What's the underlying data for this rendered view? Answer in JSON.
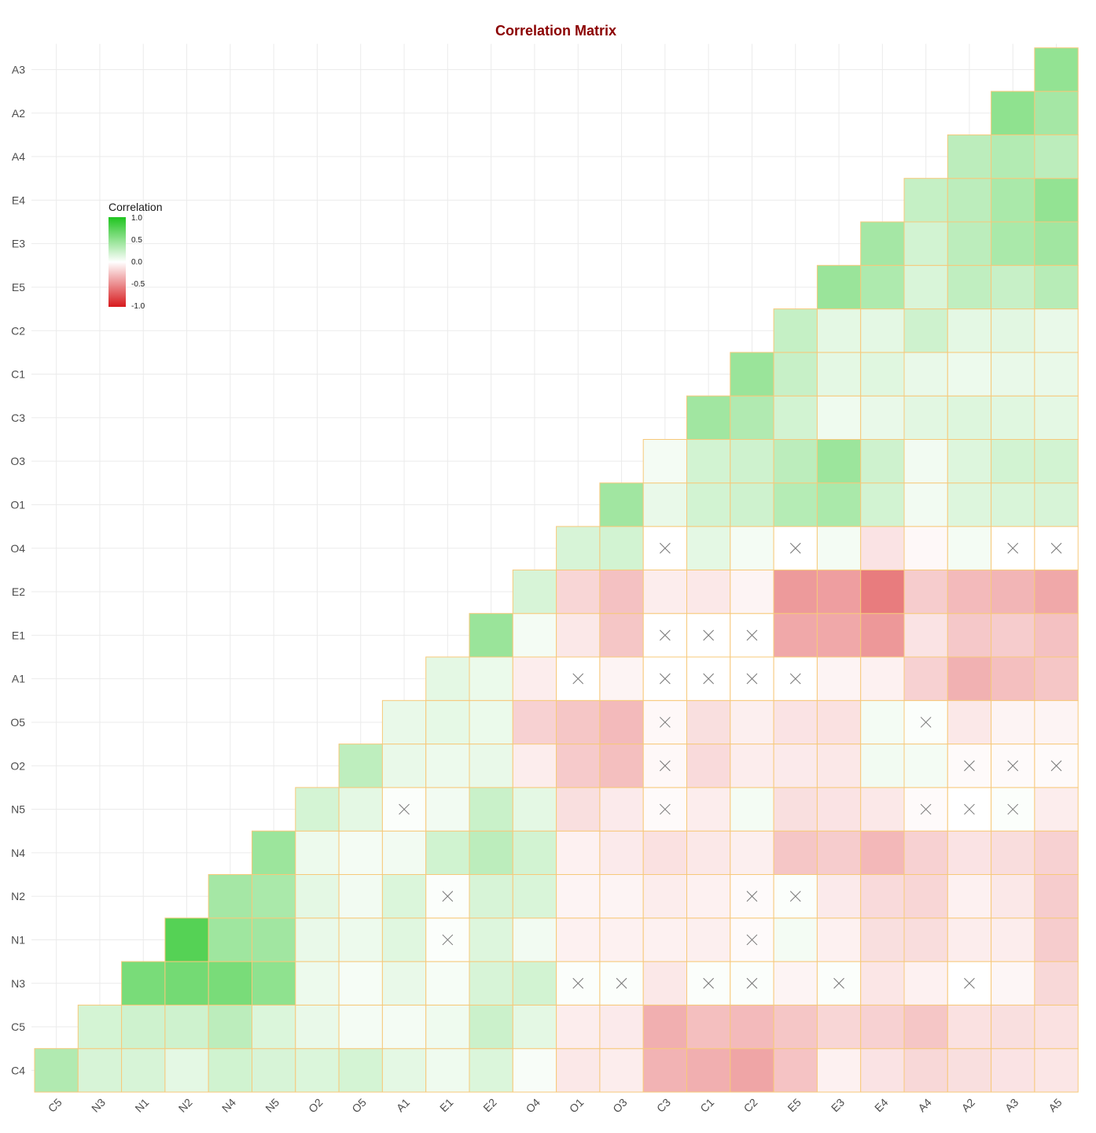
{
  "chart_data": {
    "type": "heatmap",
    "title": "Correlation Matrix",
    "xlabel": "",
    "ylabel": "",
    "x_labels": [
      "C5",
      "N3",
      "N1",
      "N2",
      "N4",
      "N5",
      "O2",
      "O5",
      "A1",
      "E1",
      "E2",
      "O4",
      "O1",
      "O3",
      "C3",
      "C1",
      "C2",
      "E5",
      "E3",
      "E4",
      "A4",
      "A2",
      "A3",
      "A5"
    ],
    "y_labels": [
      "C4",
      "C5",
      "N3",
      "N1",
      "N2",
      "N4",
      "N5",
      "O2",
      "O5",
      "A1",
      "E1",
      "E2",
      "O4",
      "O1",
      "O3",
      "C3",
      "C1",
      "C2",
      "E5",
      "E3",
      "E4",
      "A4",
      "A2",
      "A3"
    ],
    "values": [
      [
        0.35,
        0.18,
        0.18,
        0.12,
        0.21,
        0.18,
        0.16,
        0.19,
        0.12,
        0.07,
        0.16,
        0.03,
        -0.1,
        -0.08,
        -0.33,
        -0.35,
        -0.39,
        -0.26,
        -0.06,
        -0.12,
        -0.17,
        -0.14,
        -0.12,
        -0.11
      ],
      [
        null,
        0.19,
        0.22,
        0.22,
        0.3,
        0.16,
        0.1,
        0.05,
        0.05,
        0.07,
        0.23,
        0.12,
        -0.08,
        -0.09,
        -0.35,
        -0.28,
        -0.3,
        -0.25,
        -0.18,
        -0.2,
        -0.25,
        -0.13,
        -0.14,
        -0.13
      ],
      [
        null,
        null,
        0.6,
        0.62,
        0.6,
        0.5,
        0.08,
        0.04,
        0.1,
        0.04,
        0.18,
        0.2,
        0.02,
        0.02,
        -0.1,
        0.02,
        0.02,
        -0.05,
        0.02,
        -0.11,
        -0.06,
        0.0,
        -0.04,
        -0.17
      ],
      [
        null,
        null,
        null,
        0.76,
        0.43,
        0.42,
        0.1,
        0.08,
        0.14,
        0.02,
        0.15,
        0.06,
        -0.06,
        -0.06,
        -0.06,
        -0.07,
        -0.02,
        0.05,
        -0.06,
        -0.14,
        -0.15,
        -0.08,
        -0.08,
        -0.22
      ],
      [
        null,
        null,
        null,
        null,
        0.4,
        0.38,
        0.12,
        0.06,
        0.16,
        0.02,
        0.18,
        0.17,
        -0.05,
        -0.05,
        -0.08,
        -0.06,
        -0.02,
        0.02,
        -0.09,
        -0.16,
        -0.18,
        -0.06,
        -0.1,
        -0.22
      ],
      [
        null,
        null,
        null,
        null,
        null,
        0.44,
        0.08,
        0.05,
        0.06,
        0.21,
        0.3,
        0.2,
        -0.06,
        -0.09,
        -0.13,
        -0.1,
        -0.07,
        -0.25,
        -0.22,
        -0.31,
        -0.2,
        -0.12,
        -0.15,
        -0.2
      ],
      [
        null,
        null,
        null,
        null,
        null,
        null,
        0.19,
        0.12,
        0.02,
        0.06,
        0.24,
        0.12,
        -0.14,
        -0.09,
        -0.02,
        -0.08,
        0.05,
        -0.14,
        -0.12,
        -0.1,
        -0.02,
        0.0,
        0.02,
        -0.08
      ],
      [
        null,
        null,
        null,
        null,
        null,
        null,
        null,
        0.29,
        0.1,
        0.08,
        0.1,
        -0.08,
        -0.23,
        -0.28,
        -0.03,
        -0.16,
        -0.08,
        -0.09,
        -0.1,
        0.06,
        0.05,
        -0.02,
        -0.02,
        -0.02
      ],
      [
        null,
        null,
        null,
        null,
        null,
        null,
        null,
        null,
        0.1,
        0.11,
        0.09,
        -0.2,
        -0.25,
        -0.3,
        -0.03,
        -0.14,
        -0.07,
        -0.12,
        -0.13,
        0.05,
        0.02,
        -0.1,
        -0.05,
        -0.05
      ],
      [
        null,
        null,
        null,
        null,
        null,
        null,
        null,
        null,
        null,
        0.12,
        0.09,
        -0.08,
        0.0,
        -0.05,
        0.0,
        0.0,
        0.0,
        0.0,
        -0.05,
        -0.06,
        -0.2,
        -0.34,
        -0.28,
        -0.25
      ],
      [
        null,
        null,
        null,
        null,
        null,
        null,
        null,
        null,
        null,
        null,
        0.45,
        0.05,
        -0.1,
        -0.25,
        0.0,
        0.0,
        0.0,
        -0.38,
        -0.38,
        -0.45,
        -0.12,
        -0.24,
        -0.22,
        -0.27
      ],
      [
        null,
        null,
        null,
        null,
        null,
        null,
        null,
        null,
        null,
        null,
        null,
        0.18,
        -0.18,
        -0.27,
        -0.08,
        -0.1,
        -0.05,
        -0.44,
        -0.42,
        -0.57,
        -0.22,
        -0.3,
        -0.32,
        -0.38
      ],
      [
        null,
        null,
        null,
        null,
        null,
        null,
        null,
        null,
        null,
        null,
        null,
        null,
        0.18,
        0.2,
        0.0,
        0.12,
        0.05,
        0.0,
        0.05,
        -0.12,
        -0.03,
        0.05,
        0.0,
        0.0
      ],
      [
        null,
        null,
        null,
        null,
        null,
        null,
        null,
        null,
        null,
        null,
        null,
        null,
        null,
        0.42,
        0.1,
        0.2,
        0.22,
        0.33,
        0.38,
        0.2,
        0.06,
        0.15,
        0.17,
        0.18
      ],
      [
        null,
        null,
        null,
        null,
        null,
        null,
        null,
        null,
        null,
        null,
        null,
        null,
        null,
        null,
        0.05,
        0.2,
        0.22,
        0.3,
        0.44,
        0.22,
        0.06,
        0.15,
        0.2,
        0.2
      ],
      [
        null,
        null,
        null,
        null,
        null,
        null,
        null,
        null,
        null,
        null,
        null,
        null,
        null,
        null,
        null,
        0.42,
        0.35,
        0.2,
        0.07,
        0.1,
        0.13,
        0.15,
        0.14,
        0.12
      ],
      [
        null,
        null,
        null,
        null,
        null,
        null,
        null,
        null,
        null,
        null,
        null,
        null,
        null,
        null,
        null,
        null,
        0.45,
        0.25,
        0.12,
        0.14,
        0.1,
        0.08,
        0.1,
        0.1
      ],
      [
        null,
        null,
        null,
        null,
        null,
        null,
        null,
        null,
        null,
        null,
        null,
        null,
        null,
        null,
        null,
        null,
        null,
        0.26,
        0.12,
        0.12,
        0.22,
        0.12,
        0.13,
        0.1
      ],
      [
        null,
        null,
        null,
        null,
        null,
        null,
        null,
        null,
        null,
        null,
        null,
        null,
        null,
        null,
        null,
        null,
        null,
        null,
        0.45,
        0.36,
        0.17,
        0.28,
        0.25,
        0.32
      ],
      [
        null,
        null,
        null,
        null,
        null,
        null,
        null,
        null,
        null,
        null,
        null,
        null,
        null,
        null,
        null,
        null,
        null,
        null,
        null,
        0.4,
        0.2,
        0.3,
        0.38,
        0.42
      ],
      [
        null,
        null,
        null,
        null,
        null,
        null,
        null,
        null,
        null,
        null,
        null,
        null,
        null,
        null,
        null,
        null,
        null,
        null,
        null,
        null,
        0.26,
        0.3,
        0.38,
        0.48
      ],
      [
        null,
        null,
        null,
        null,
        null,
        null,
        null,
        null,
        null,
        null,
        null,
        null,
        null,
        null,
        null,
        null,
        null,
        null,
        null,
        null,
        null,
        0.3,
        0.34,
        0.3
      ],
      [
        null,
        null,
        null,
        null,
        null,
        null,
        null,
        null,
        null,
        null,
        null,
        null,
        null,
        null,
        null,
        null,
        null,
        null,
        null,
        null,
        null,
        null,
        0.5,
        0.4
      ],
      [
        null,
        null,
        null,
        null,
        null,
        null,
        null,
        null,
        null,
        null,
        null,
        null,
        null,
        null,
        null,
        null,
        null,
        null,
        null,
        null,
        null,
        null,
        null,
        0.48
      ]
    ],
    "insignificant_marker": "×",
    "insignificant": [
      [
        6,
        14
      ],
      [
        7,
        14
      ],
      [
        7,
        21
      ],
      [
        7,
        22
      ],
      [
        7,
        23
      ],
      [
        6,
        8
      ],
      [
        6,
        20
      ],
      [
        6,
        21
      ],
      [
        6,
        22
      ],
      [
        8,
        14
      ],
      [
        8,
        20
      ],
      [
        9,
        12
      ],
      [
        9,
        14
      ],
      [
        9,
        15
      ],
      [
        9,
        16
      ],
      [
        9,
        17
      ],
      [
        10,
        14
      ],
      [
        10,
        15
      ],
      [
        10,
        16
      ],
      [
        12,
        14
      ],
      [
        12,
        17
      ],
      [
        12,
        22
      ],
      [
        12,
        23
      ],
      [
        4,
        9
      ],
      [
        4,
        16
      ],
      [
        4,
        17
      ],
      [
        3,
        9
      ],
      [
        3,
        16
      ],
      [
        2,
        12
      ],
      [
        2,
        13
      ],
      [
        2,
        15
      ],
      [
        2,
        16
      ],
      [
        2,
        18
      ],
      [
        2,
        21
      ]
    ],
    "legend": {
      "title": "Correlation",
      "ticks": [
        "1.0",
        "0.5",
        "0.0",
        "-0.5",
        "-1.0"
      ],
      "position": "top-left"
    },
    "color_scale": {
      "low": "#d7191c",
      "mid": "#ffffff",
      "high": "#1fc41f"
    },
    "grid": true
  }
}
